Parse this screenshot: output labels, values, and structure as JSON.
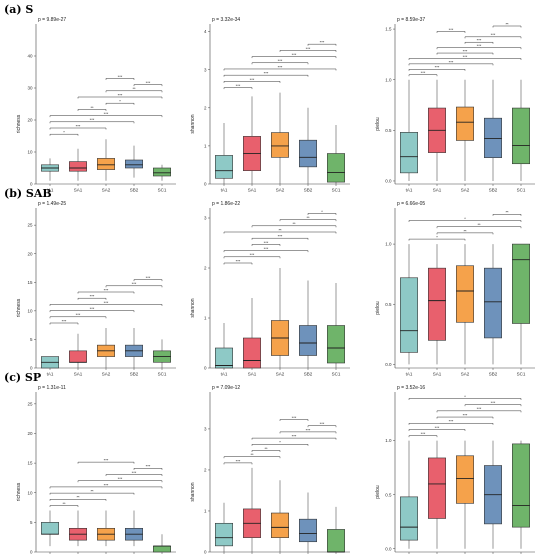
{
  "categories": [
    "tA1",
    "SA1",
    "SA2",
    "SB2",
    "SC1"
  ],
  "colors": [
    "#8ec9c6",
    "#e8606d",
    "#f5a24b",
    "#6e92bb",
    "#6fb46a"
  ],
  "rows": [
    {
      "label": "(a) S"
    },
    {
      "label": "(b) SAB"
    },
    {
      "label": "(c) SP"
    }
  ],
  "chart_data": [
    {
      "type": "box",
      "row": 0,
      "col": 0,
      "title": "p = 9.89e-27",
      "ylabel": "richness",
      "ylim": [
        0,
        50
      ],
      "yticks": [
        0,
        10,
        20,
        30,
        40
      ],
      "boxes": [
        {
          "min": 1,
          "q1": 4,
          "median": 5,
          "q3": 6,
          "max": 8
        },
        {
          "min": 1,
          "q1": 4,
          "median": 5,
          "q3": 7,
          "max": 11
        },
        {
          "min": 1,
          "q1": 4.5,
          "median": 6,
          "q3": 8,
          "max": 14
        },
        {
          "min": 2,
          "q1": 5,
          "median": 6,
          "q3": 7.5,
          "max": 12
        },
        {
          "min": 1,
          "q1": 2.5,
          "median": 3.5,
          "q3": 5,
          "max": 6
        }
      ],
      "brackets": [
        [
          "*",
          "0",
          "1"
        ],
        [
          "***",
          "0",
          "2"
        ],
        [
          "***",
          "0",
          "3"
        ],
        [
          "***",
          "0",
          "4"
        ],
        [
          "**",
          "1",
          "2"
        ],
        [
          "*",
          "2",
          "3"
        ],
        [
          "***",
          "1",
          "4"
        ],
        [
          "**",
          "2",
          "4"
        ],
        [
          "***",
          "3",
          "4"
        ],
        [
          "***",
          "2",
          "3"
        ]
      ]
    },
    {
      "type": "box",
      "row": 0,
      "col": 1,
      "title": "p = 3.32e-34",
      "ylabel": "shannon",
      "ylim": [
        0,
        4.2
      ],
      "yticks": [
        0,
        1,
        2,
        3,
        4
      ],
      "boxes": [
        {
          "min": 0,
          "q1": 0.15,
          "median": 0.35,
          "q3": 0.75,
          "max": 1.6
        },
        {
          "min": 0,
          "q1": 0.35,
          "median": 0.8,
          "q3": 1.25,
          "max": 2.3
        },
        {
          "min": 0,
          "q1": 0.7,
          "median": 1.0,
          "q3": 1.35,
          "max": 2.4
        },
        {
          "min": 0,
          "q1": 0.45,
          "median": 0.7,
          "q3": 1.15,
          "max": 2.0
        },
        {
          "min": 0,
          "q1": 0.05,
          "median": 0.3,
          "q3": 0.8,
          "max": 1.55
        }
      ],
      "brackets": [
        [
          "***",
          "0",
          "1"
        ],
        [
          "***",
          "0",
          "2"
        ],
        [
          "***",
          "0",
          "3"
        ],
        [
          "***",
          "0",
          "4"
        ],
        [
          "***",
          "1",
          "3"
        ],
        [
          "***",
          "1",
          "4"
        ],
        [
          "***",
          "2",
          "4"
        ],
        [
          "***",
          "3",
          "4"
        ]
      ]
    },
    {
      "type": "box",
      "row": 0,
      "col": 2,
      "title": "p = 8.59e-37",
      "ylabel": "pielou",
      "ylim": [
        -0.03,
        1.55
      ],
      "yticks": [
        0,
        0.5,
        1.0,
        1.5
      ],
      "yticklabels": [
        "0.0",
        "0.5",
        "1.0",
        "1.5"
      ],
      "boxes": [
        {
          "min": 0,
          "q1": 0.08,
          "median": 0.24,
          "q3": 0.48,
          "max": 1.0
        },
        {
          "min": 0,
          "q1": 0.28,
          "median": 0.5,
          "q3": 0.72,
          "max": 1.0
        },
        {
          "min": 0,
          "q1": 0.4,
          "median": 0.58,
          "q3": 0.73,
          "max": 1.0
        },
        {
          "min": 0,
          "q1": 0.23,
          "median": 0.42,
          "q3": 0.62,
          "max": 1.0
        },
        {
          "min": 0,
          "q1": 0.17,
          "median": 0.35,
          "q3": 0.72,
          "max": 1.0
        }
      ],
      "brackets": [
        [
          "***",
          "0",
          "1"
        ],
        [
          "***",
          "0",
          "2"
        ],
        [
          "***",
          "0",
          "3"
        ],
        [
          "***",
          "0",
          "4"
        ],
        [
          "***",
          "1",
          "3"
        ],
        [
          "***",
          "1",
          "4"
        ],
        [
          "***",
          "2",
          "3"
        ],
        [
          "***",
          "2",
          "4"
        ],
        [
          "***",
          "1",
          "2"
        ],
        [
          "**",
          "3",
          "4"
        ]
      ]
    },
    {
      "type": "box",
      "row": 1,
      "col": 0,
      "title": "p = 1.49e-25",
      "ylabel": "richness",
      "ylim": [
        0,
        28
      ],
      "yticks": [
        0,
        5,
        10,
        15,
        20,
        25
      ],
      "boxes": [
        {
          "min": 0,
          "q1": 0,
          "median": 1,
          "q3": 2,
          "max": 2
        },
        {
          "min": 0,
          "q1": 1,
          "median": 1,
          "q3": 3,
          "max": 6
        },
        {
          "min": 0,
          "q1": 2,
          "median": 3,
          "q3": 4,
          "max": 7
        },
        {
          "min": 0,
          "q1": 2,
          "median": 3,
          "q3": 4,
          "max": 7
        },
        {
          "min": 0,
          "q1": 1,
          "median": 2,
          "q3": 3,
          "max": 5
        }
      ],
      "brackets": [
        [
          "***",
          "0",
          "1"
        ],
        [
          "***",
          "0",
          "2"
        ],
        [
          "***",
          "0",
          "3"
        ],
        [
          "***",
          "0",
          "4"
        ],
        [
          "***",
          "1",
          "2"
        ],
        [
          "***",
          "1",
          "3"
        ],
        [
          "***",
          "2",
          "4"
        ],
        [
          "***",
          "3",
          "4"
        ]
      ]
    },
    {
      "type": "box",
      "row": 1,
      "col": 1,
      "title": "p = 1.86e-22",
      "ylabel": "shannon",
      "ylim": [
        0,
        3.2
      ],
      "yticks": [
        0,
        1,
        2,
        3
      ],
      "boxes": [
        {
          "min": 0,
          "q1": 0,
          "median": 0.05,
          "q3": 0.4,
          "max": 0.9
        },
        {
          "min": 0,
          "q1": 0,
          "median": 0.15,
          "q3": 0.6,
          "max": 1.4
        },
        {
          "min": 0,
          "q1": 0.25,
          "median": 0.6,
          "q3": 0.95,
          "max": 2.0
        },
        {
          "min": 0,
          "q1": 0.25,
          "median": 0.5,
          "q3": 0.85,
          "max": 1.75
        },
        {
          "min": 0,
          "q1": 0.1,
          "median": 0.4,
          "q3": 0.85,
          "max": 1.7
        }
      ],
      "brackets": [
        [
          "***",
          "0",
          "1"
        ],
        [
          "***",
          "0",
          "2"
        ],
        [
          "***",
          "0",
          "3"
        ],
        [
          "***",
          "1",
          "2"
        ],
        [
          "***",
          "1",
          "3"
        ],
        [
          "**",
          "0",
          "4"
        ],
        [
          "**",
          "1",
          "4"
        ],
        [
          "**",
          "2",
          "4"
        ],
        [
          "*",
          "3",
          "4"
        ]
      ]
    },
    {
      "type": "box",
      "row": 1,
      "col": 2,
      "title": "p = 6.66e-05",
      "ylabel": "pielou",
      "ylim": [
        -0.03,
        1.3
      ],
      "yticks": [
        0,
        0.5,
        1.0
      ],
      "yticklabels": [
        "0.0",
        "0.5",
        "1.0"
      ],
      "boxes": [
        {
          "min": 0,
          "q1": 0.1,
          "median": 0.28,
          "q3": 0.72,
          "max": 1.0
        },
        {
          "min": 0,
          "q1": 0.2,
          "median": 0.53,
          "q3": 0.8,
          "max": 1.0
        },
        {
          "min": 0,
          "q1": 0.35,
          "median": 0.61,
          "q3": 0.82,
          "max": 1.0
        },
        {
          "min": 0,
          "q1": 0.22,
          "median": 0.52,
          "q3": 0.8,
          "max": 1.0
        },
        {
          "min": 0,
          "q1": 0.34,
          "median": 0.87,
          "q3": 1.0,
          "max": 1.0
        }
      ],
      "brackets": [
        [
          "*",
          "0",
          "2"
        ],
        [
          "**",
          "1",
          "3"
        ],
        [
          "**",
          "1",
          "4"
        ],
        [
          "*",
          "0",
          "4"
        ],
        [
          "**",
          "3",
          "4"
        ]
      ]
    },
    {
      "type": "box",
      "row": 2,
      "col": 0,
      "title": "p = 1.31e-11",
      "ylabel": "richness",
      "ylim": [
        0,
        27
      ],
      "yticks": [
        0,
        5,
        10,
        15,
        20,
        25
      ],
      "boxes": [
        {
          "min": 1,
          "q1": 3,
          "median": 3,
          "q3": 5,
          "max": 7
        },
        {
          "min": 1,
          "q1": 2,
          "median": 3,
          "q3": 4,
          "max": 7
        },
        {
          "min": 1,
          "q1": 2,
          "median": 3,
          "q3": 4,
          "max": 7
        },
        {
          "min": 1,
          "q1": 2,
          "median": 3,
          "q3": 4,
          "max": 7
        },
        {
          "min": 0,
          "q1": 0,
          "median": 1,
          "q3": 1,
          "max": 3
        }
      ],
      "brackets": [
        [
          "**",
          "0",
          "1"
        ],
        [
          "**",
          "0",
          "2"
        ],
        [
          "**",
          "0",
          "3"
        ],
        [
          "***",
          "0",
          "4"
        ],
        [
          "***",
          "1",
          "4"
        ],
        [
          "***",
          "2",
          "4"
        ],
        [
          "***",
          "3",
          "4"
        ],
        [
          "***",
          "1",
          "3"
        ]
      ]
    },
    {
      "type": "box",
      "row": 2,
      "col": 1,
      "title": "p = 7.09e-12",
      "ylabel": "shannon",
      "ylim": [
        0,
        3.9
      ],
      "yticks": [
        0,
        1,
        2,
        3
      ],
      "boxes": [
        {
          "min": 0,
          "q1": 0.15,
          "median": 0.35,
          "q3": 0.7,
          "max": 1.2
        },
        {
          "min": 0,
          "q1": 0.35,
          "median": 0.7,
          "q3": 1.05,
          "max": 2.05
        },
        {
          "min": 0,
          "q1": 0.35,
          "median": 0.6,
          "q3": 0.95,
          "max": 1.75
        },
        {
          "min": 0,
          "q1": 0.25,
          "median": 0.45,
          "q3": 0.8,
          "max": 1.45
        },
        {
          "min": 0,
          "q1": 0,
          "median": 0,
          "q3": 0.55,
          "max": 1.1
        }
      ],
      "brackets": [
        [
          "***",
          "0",
          "1"
        ],
        [
          "**",
          "0",
          "2"
        ],
        [
          "**",
          "1",
          "2"
        ],
        [
          "*",
          "1",
          "3"
        ],
        [
          "***",
          "1",
          "4"
        ],
        [
          "***",
          "2",
          "4"
        ],
        [
          "***",
          "3",
          "4"
        ],
        [
          "***",
          "2",
          "3"
        ]
      ]
    },
    {
      "type": "box",
      "row": 2,
      "col": 2,
      "title": "p = 3.52e-16",
      "ylabel": "pielou",
      "ylim": [
        -0.03,
        1.45
      ],
      "yticks": [
        0,
        0.5,
        1.0
      ],
      "yticklabels": [
        "0.0",
        "0.5",
        "1.0"
      ],
      "boxes": [
        {
          "min": 0,
          "q1": 0.08,
          "median": 0.2,
          "q3": 0.48,
          "max": 1.0
        },
        {
          "min": 0,
          "q1": 0.28,
          "median": 0.6,
          "q3": 0.84,
          "max": 1.0
        },
        {
          "min": 0,
          "q1": 0.42,
          "median": 0.65,
          "q3": 0.86,
          "max": 1.0
        },
        {
          "min": 0,
          "q1": 0.23,
          "median": 0.5,
          "q3": 0.77,
          "max": 1.0
        },
        {
          "min": 0,
          "q1": 0.2,
          "median": 0.4,
          "q3": 0.97,
          "max": 1.0
        }
      ],
      "brackets": [
        [
          "***",
          "0",
          "1"
        ],
        [
          "***",
          "0",
          "2"
        ],
        [
          "***",
          "0",
          "3"
        ],
        [
          "***",
          "1",
          "3"
        ],
        [
          "***",
          "1",
          "4"
        ],
        [
          "***",
          "2",
          "4"
        ],
        [
          "*",
          "0",
          "4"
        ]
      ]
    }
  ]
}
